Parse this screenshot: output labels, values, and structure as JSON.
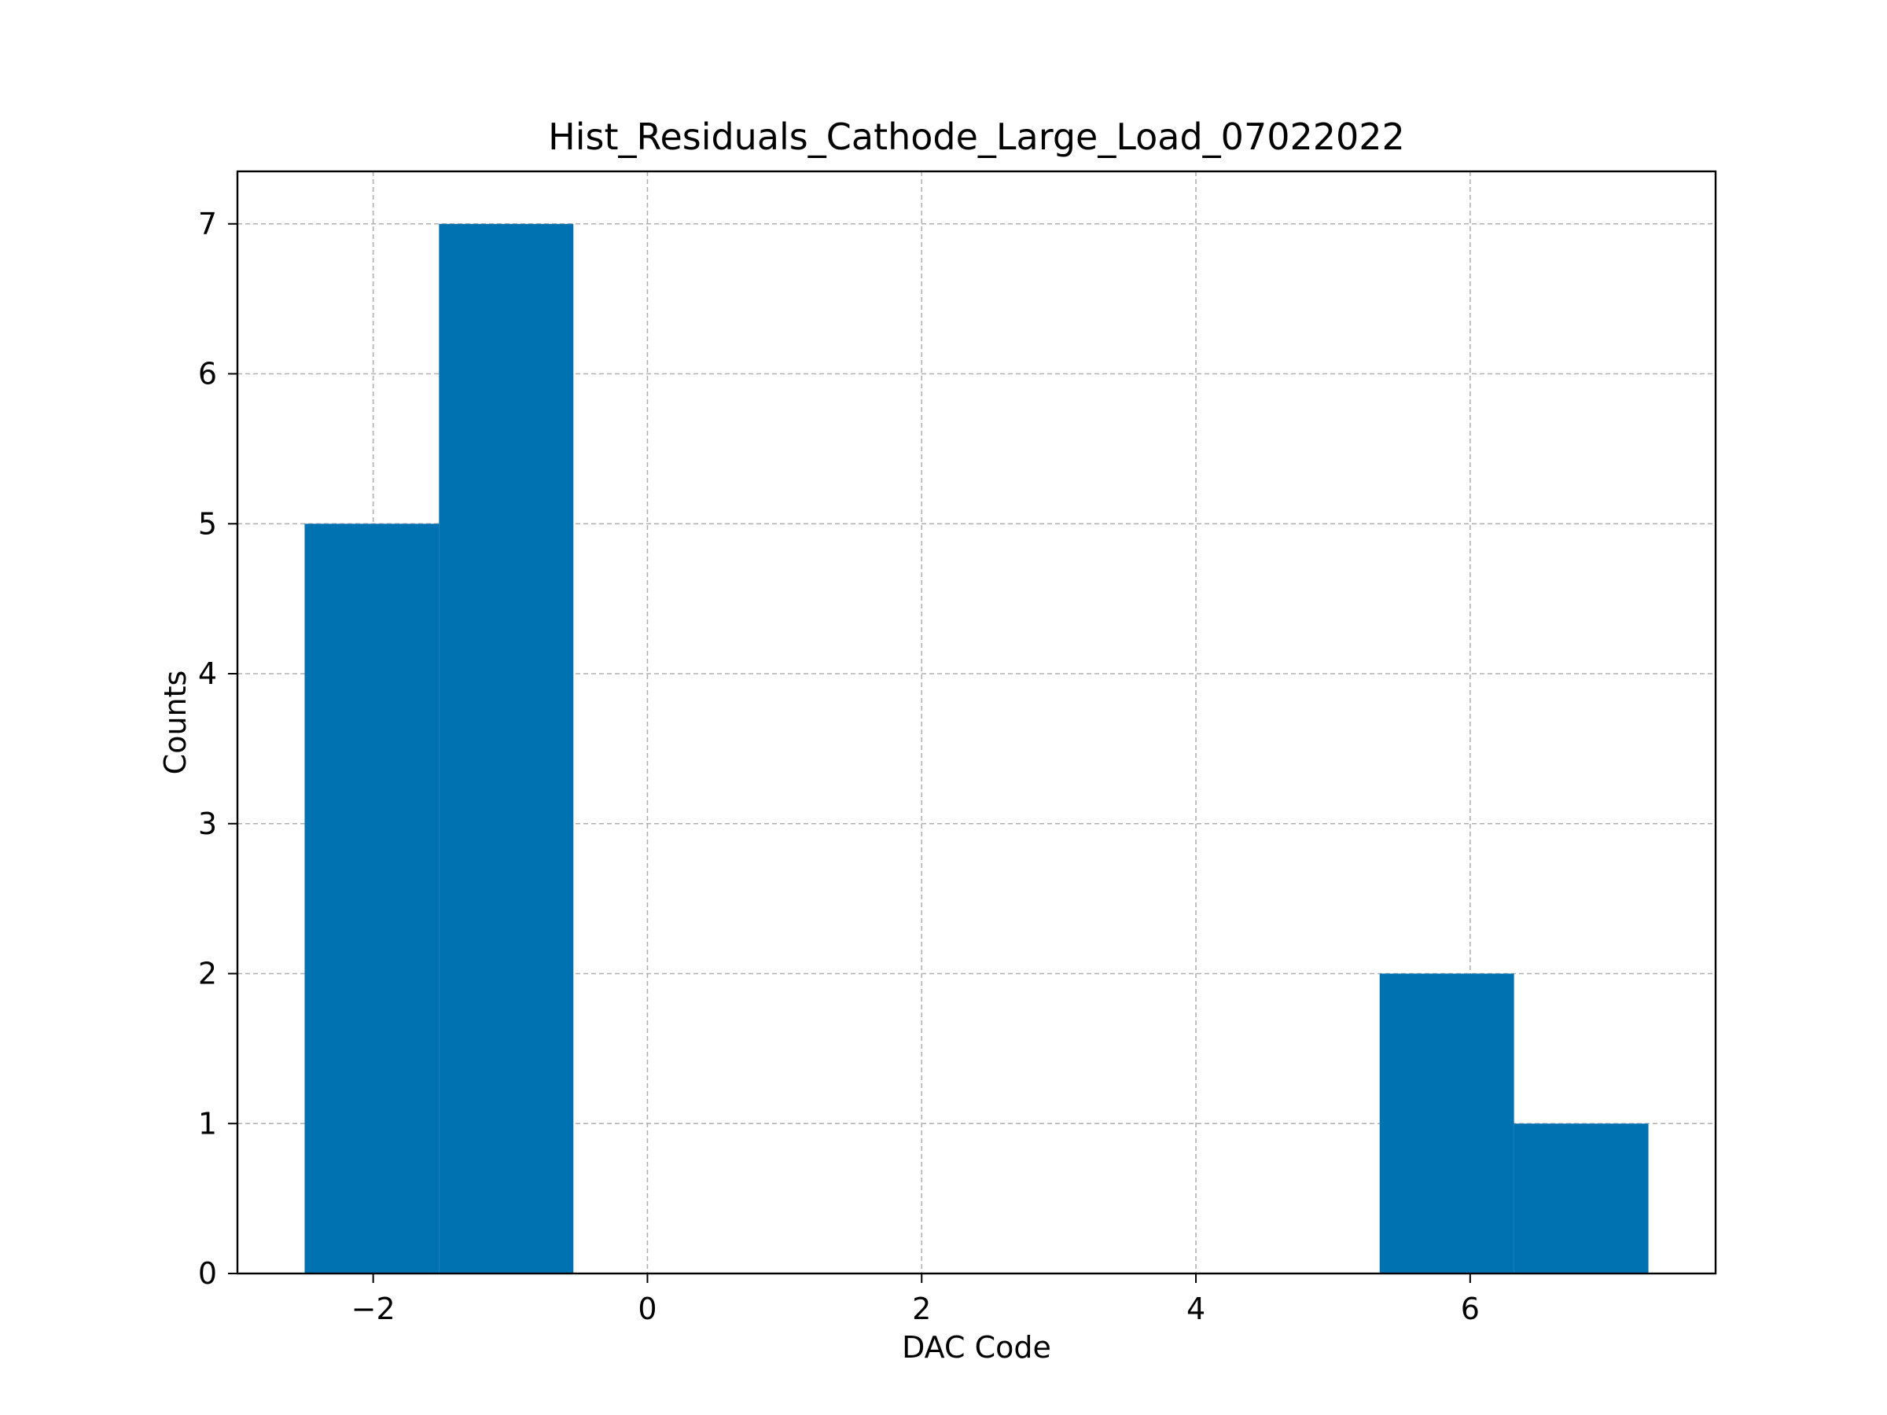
{
  "chart_data": {
    "type": "bar",
    "title": "Hist_Residuals_Cathode_Large_Load_07022022",
    "xlabel": "DAC Code",
    "ylabel": "Counts",
    "bins": [
      {
        "x0": -2.5,
        "x1": -1.52,
        "count": 5
      },
      {
        "x0": -1.52,
        "x1": -0.54,
        "count": 7
      },
      {
        "x0": -0.54,
        "x1": 0.44,
        "count": 0
      },
      {
        "x0": 0.44,
        "x1": 1.42,
        "count": 0
      },
      {
        "x0": 1.42,
        "x1": 2.4,
        "count": 0
      },
      {
        "x0": 2.4,
        "x1": 3.38,
        "count": 0
      },
      {
        "x0": 3.38,
        "x1": 4.36,
        "count": 0
      },
      {
        "x0": 4.36,
        "x1": 5.34,
        "count": 0
      },
      {
        "x0": 5.34,
        "x1": 6.32,
        "count": 2
      },
      {
        "x0": 6.32,
        "x1": 7.3,
        "count": 1
      }
    ],
    "xlim": [
      -2.99,
      7.79
    ],
    "ylim": [
      0,
      7.35
    ],
    "xticks": [
      -2,
      0,
      2,
      4,
      6
    ],
    "xtick_labels": [
      "−2",
      "0",
      "2",
      "4",
      "6"
    ],
    "yticks": [
      0,
      1,
      2,
      3,
      4,
      5,
      6,
      7
    ],
    "ytick_labels": [
      "0",
      "1",
      "2",
      "3",
      "4",
      "5",
      "6",
      "7"
    ],
    "grid": true,
    "bar_color": "#0072b2",
    "grid_color": "#b0b0b0"
  }
}
